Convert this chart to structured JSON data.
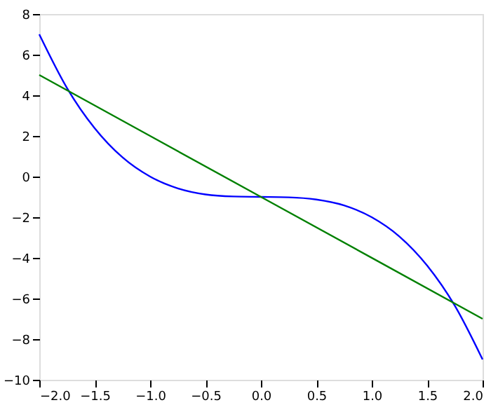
{
  "chart_data": {
    "type": "line",
    "x": [
      -2,
      -1.75,
      -1.5,
      -1.25,
      -1,
      -0.75,
      -0.5,
      -0.25,
      0,
      0.25,
      0.5,
      0.75,
      1,
      1.25,
      1.5,
      1.75,
      2
    ],
    "series": [
      {
        "color": "#0000ff",
        "values": [
          7,
          4.36,
          2.38,
          0.95,
          0,
          -0.58,
          -0.88,
          -0.98,
          -1,
          -1.02,
          -1.13,
          -1.42,
          -2,
          -2.95,
          -4.38,
          -6.36,
          -9
        ]
      },
      {
        "color": "#008000",
        "x": [
          -2,
          0,
          2
        ],
        "values": [
          5,
          -1,
          -7
        ]
      }
    ],
    "xlim": [
      -2,
      2
    ],
    "xticks": [
      {
        "value": -2,
        "label": "−2.0"
      },
      {
        "value": -1.5,
        "label": "−1.5"
      },
      {
        "value": -1,
        "label": "−1.0"
      },
      {
        "value": -0.5,
        "label": "−0.5"
      },
      {
        "value": 0,
        "label": "0.0"
      },
      {
        "value": 0.5,
        "label": "0.5"
      },
      {
        "value": 1,
        "label": "1.0"
      },
      {
        "value": 1.5,
        "label": "1.5"
      },
      {
        "value": 2,
        "label": "2.0"
      }
    ],
    "ylim": [
      -10,
      8
    ],
    "yticks": [
      -10,
      -8,
      -6,
      -4,
      -2,
      0,
      2,
      4,
      6,
      8
    ],
    "grid": false,
    "marker": "none",
    "line_style": "solid"
  }
}
